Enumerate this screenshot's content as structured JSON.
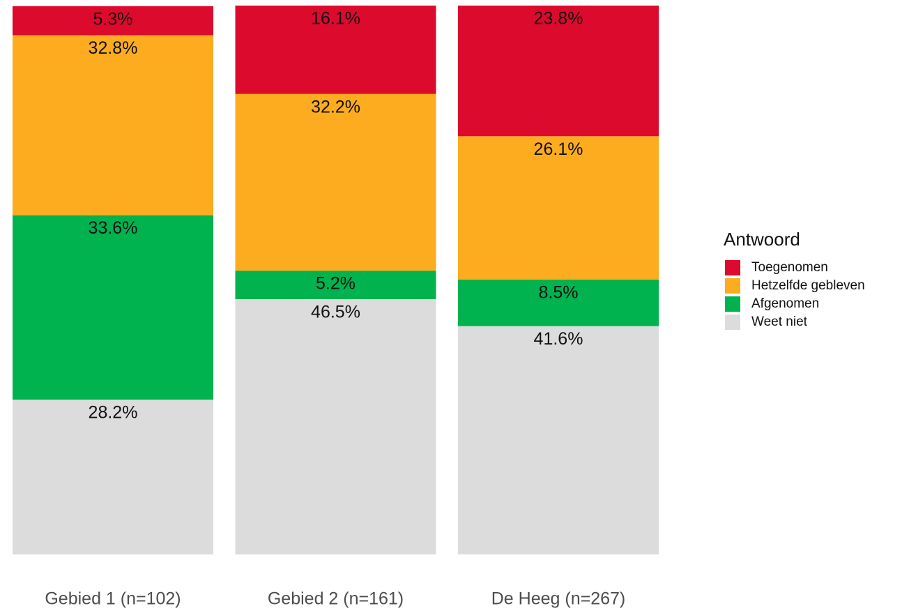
{
  "chart_data": {
    "type": "stacked_bar",
    "categories": [
      "Gebied 1 (n=102)",
      "Gebied 2 (n=161)",
      "De Heeg (n=267)"
    ],
    "ylim": [
      0,
      100
    ],
    "legend_title": "Antwoord",
    "legend_position": "right",
    "series": [
      {
        "name": "Toegenomen",
        "color": "#dc0a2d",
        "values": [
          5.3,
          16.1,
          23.8
        ],
        "value_labels": [
          "5.3%",
          "16.1%",
          "23.8%"
        ]
      },
      {
        "name": "Hetzelfde gebleven",
        "color": "#fdac20",
        "values": [
          32.8,
          32.2,
          26.1
        ],
        "value_labels": [
          "32.8%",
          "32.2%",
          "26.1%"
        ]
      },
      {
        "name": "Afgenomen",
        "color": "#00b34f",
        "values": [
          33.6,
          5.2,
          8.5
        ],
        "value_labels": [
          "33.6%",
          "5.2%",
          "8.5%"
        ]
      },
      {
        "name": "Weet niet",
        "color": "#dcdcdc",
        "values": [
          28.2,
          46.5,
          41.6
        ],
        "value_labels": [
          "28.2%",
          "46.5%",
          "41.6%"
        ]
      }
    ]
  }
}
